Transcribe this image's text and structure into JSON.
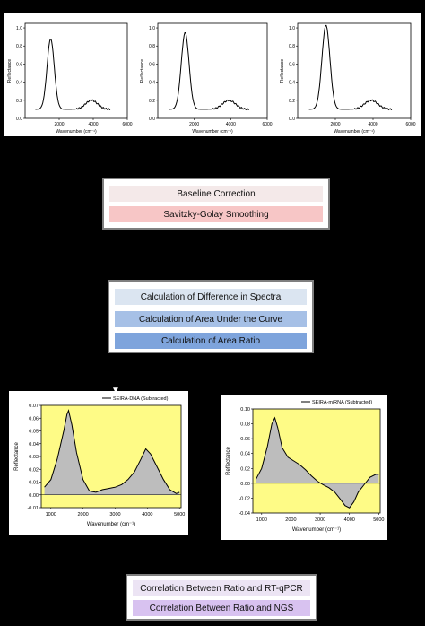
{
  "top_spectra": {
    "ylabel": "Reflectance",
    "xlabel": "Wavenumber (cm⁻¹)",
    "yticks": [
      "0.0",
      "0.2",
      "0.4",
      "0.6",
      "0.8",
      "1.0"
    ],
    "xticks": [
      "2000",
      "4000",
      "6000"
    ],
    "panels": [
      {
        "peak": 0.78,
        "xticks": [
          "2000",
          "4000",
          "6000"
        ],
        "ylim": [
          0,
          1.05
        ]
      },
      {
        "peak": 0.85,
        "xticks": [
          "2000",
          "4000",
          "6000"
        ],
        "ylim": [
          0,
          1.05
        ]
      },
      {
        "peak": 0.93,
        "xticks": [
          "2000",
          "4000",
          "6000"
        ],
        "ylim": [
          0,
          1.05
        ]
      }
    ]
  },
  "preprocess": {
    "steps": [
      {
        "label": "Baseline Correction",
        "color": "#f4e9e9"
      },
      {
        "label": "Savitzky-Golay Smoothing",
        "color": "#f7c6c6"
      }
    ]
  },
  "analysis": {
    "steps": [
      {
        "label": "Calculation of Difference in Spectra",
        "color": "#dbe5f1"
      },
      {
        "label": "Calculation of Area Under the Curve",
        "color": "#a6c0e6"
      },
      {
        "label": "Calculation of Area Ratio",
        "color": "#7ea4dc"
      }
    ]
  },
  "correlation": {
    "steps": [
      {
        "label": "Correlation Between Ratio and RT-qPCR",
        "color": "#ece4f4"
      },
      {
        "label": "Correlation Between Ratio and NGS",
        "color": "#d8c2f0"
      }
    ]
  },
  "chart_data": [
    {
      "type": "line",
      "series": [
        {
          "name": "SEIRA-DNA (Subtracted)"
        }
      ],
      "xlabel": "Wavenumber (cm⁻¹)",
      "ylabel": "Reflectance",
      "xlim": [
        800,
        5000
      ],
      "ylim": [
        -0.01,
        0.07
      ],
      "xticks": [
        "1000",
        "2000",
        "3000",
        "4000",
        "5000"
      ],
      "yticks": [
        "-0.01",
        "0.00",
        "0.01",
        "0.02",
        "0.03",
        "0.04",
        "0.05",
        "0.06",
        "0.07"
      ],
      "x": [
        800,
        1000,
        1200,
        1400,
        1500,
        1550,
        1650,
        1800,
        2000,
        2200,
        2400,
        2600,
        2800,
        3000,
        3200,
        3400,
        3600,
        3800,
        3950,
        4100,
        4300,
        4500,
        4700,
        4900,
        5000
      ],
      "y": [
        0.006,
        0.012,
        0.028,
        0.05,
        0.063,
        0.066,
        0.055,
        0.033,
        0.012,
        0.003,
        0.002,
        0.004,
        0.005,
        0.006,
        0.008,
        0.012,
        0.018,
        0.028,
        0.036,
        0.032,
        0.022,
        0.012,
        0.004,
        0.001,
        0.002
      ]
    },
    {
      "type": "line",
      "series": [
        {
          "name": "SEIRA-miRNA (Subtracted)"
        }
      ],
      "xlabel": "Wavenumber (cm⁻¹)",
      "ylabel": "Reflectance",
      "xlim": [
        800,
        5000
      ],
      "ylim": [
        -0.04,
        0.1
      ],
      "xticks": [
        "1000",
        "2000",
        "3000",
        "4000",
        "5000"
      ],
      "yticks": [
        "-0.04",
        "-0.02",
        "0.00",
        "0.02",
        "0.04",
        "0.06",
        "0.08",
        "0.10"
      ],
      "x": [
        800,
        1000,
        1200,
        1350,
        1450,
        1550,
        1700,
        1900,
        2100,
        2300,
        2500,
        2700,
        2900,
        3100,
        3300,
        3500,
        3700,
        3850,
        4000,
        4150,
        4300,
        4500,
        4700,
        4900,
        5000
      ],
      "y": [
        0.005,
        0.02,
        0.05,
        0.08,
        0.088,
        0.075,
        0.048,
        0.035,
        0.03,
        0.025,
        0.018,
        0.01,
        0.003,
        -0.002,
        -0.006,
        -0.012,
        -0.022,
        -0.03,
        -0.033,
        -0.025,
        -0.012,
        -0.002,
        0.008,
        0.012,
        0.012
      ]
    }
  ]
}
